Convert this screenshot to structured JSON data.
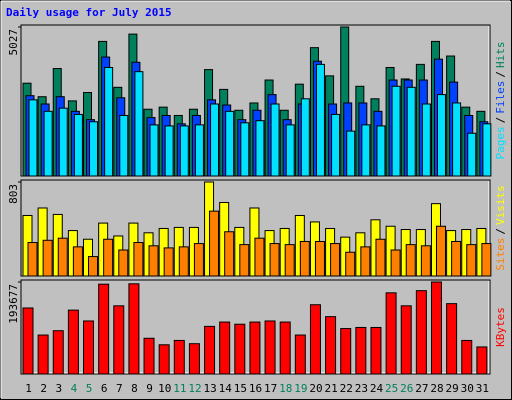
{
  "legend_separator": "/",
  "highlight_color": "#00805c",
  "highlight_categories": [
    "4",
    "5",
    "11",
    "12",
    "18",
    "19",
    "25",
    "26"
  ],
  "chart_data": [
    {
      "type": "grouped-bar",
      "title": "Daily usage for July 2015",
      "ylim": [
        0,
        5027
      ],
      "yticks": [
        5027
      ],
      "series": [
        {
          "name": "Hits",
          "color": "#00805c",
          "values": [
            3131,
            2675,
            3626,
            2534,
            2816,
            4541,
            2992,
            4787,
            2253,
            2323,
            2042,
            2253,
            3590,
            2922,
            2218,
            2464,
            3238,
            2218,
            3098,
            4330,
            3379,
            5027,
            3027,
            2605,
            3661,
            3274,
            3766,
            4541,
            4048,
            2323,
            2182
          ]
        },
        {
          "name": "Files",
          "color": "#0040ff",
          "values": [
            2710,
            2429,
            2675,
            2182,
            1901,
            4013,
            2640,
            3837,
            1971,
            2042,
            1760,
            2042,
            2570,
            2394,
            1901,
            2218,
            2746,
            1901,
            2429,
            3872,
            2429,
            2464,
            2464,
            2182,
            3238,
            3238,
            3238,
            3942,
            3168,
            2042,
            1830
          ]
        },
        {
          "name": "Pages",
          "color": "#00e0ff",
          "values": [
            2570,
            2182,
            2288,
            2077,
            1830,
            3661,
            2042,
            3520,
            1725,
            1690,
            1690,
            1725,
            2429,
            2182,
            1795,
            1866,
            2429,
            1725,
            2605,
            3766,
            2077,
            1514,
            1725,
            1690,
            3027,
            2992,
            2429,
            2746,
            2464,
            1443,
            1760
          ]
        }
      ]
    },
    {
      "type": "grouped-bar",
      "ylim": [
        0,
        803
      ],
      "yticks": [
        803
      ],
      "series": [
        {
          "name": "Visits",
          "color": "#ffff00",
          "values": [
            517,
            581,
            526,
            388,
            314,
            452,
            342,
            452,
            369,
            406,
            415,
            415,
            803,
            628,
            415,
            581,
            388,
            406,
            517,
            462,
            406,
            332,
            369,
            480,
            425,
            397,
            397,
            618,
            388,
            397,
            406
          ]
        },
        {
          "name": "Sites",
          "color": "#ff8000",
          "values": [
            286,
            305,
            323,
            249,
            166,
            314,
            222,
            286,
            258,
            240,
            249,
            277,
            554,
            378,
            268,
            323,
            277,
            268,
            295,
            295,
            277,
            203,
            249,
            314,
            222,
            268,
            258,
            425,
            295,
            268,
            277
          ]
        }
      ]
    },
    {
      "type": "grouped-bar",
      "ylim": [
        0,
        193677
      ],
      "yticks": [
        193677
      ],
      "categories": [
        "1",
        "2",
        "3",
        "4",
        "5",
        "6",
        "7",
        "8",
        "9",
        "10",
        "11",
        "12",
        "13",
        "14",
        "15",
        "16",
        "17",
        "18",
        "19",
        "20",
        "21",
        "22",
        "23",
        "24",
        "25",
        "26",
        "27",
        "28",
        "29",
        "30",
        "31"
      ],
      "series": [
        {
          "name": "KBytes",
          "color": "#ff0000",
          "values": [
            139000,
            82030,
            91144,
            134437,
            111651,
            189124,
            143552,
            189900,
            75194,
            61522,
            70637,
            63801,
            100258,
            109373,
            104816,
            109373,
            111651,
            109373,
            82030,
            145830,
            120766,
            95701,
            97980,
            97980,
            170895,
            143552,
            175452,
            193677,
            148109,
            70637,
            56965
          ]
        }
      ]
    }
  ]
}
